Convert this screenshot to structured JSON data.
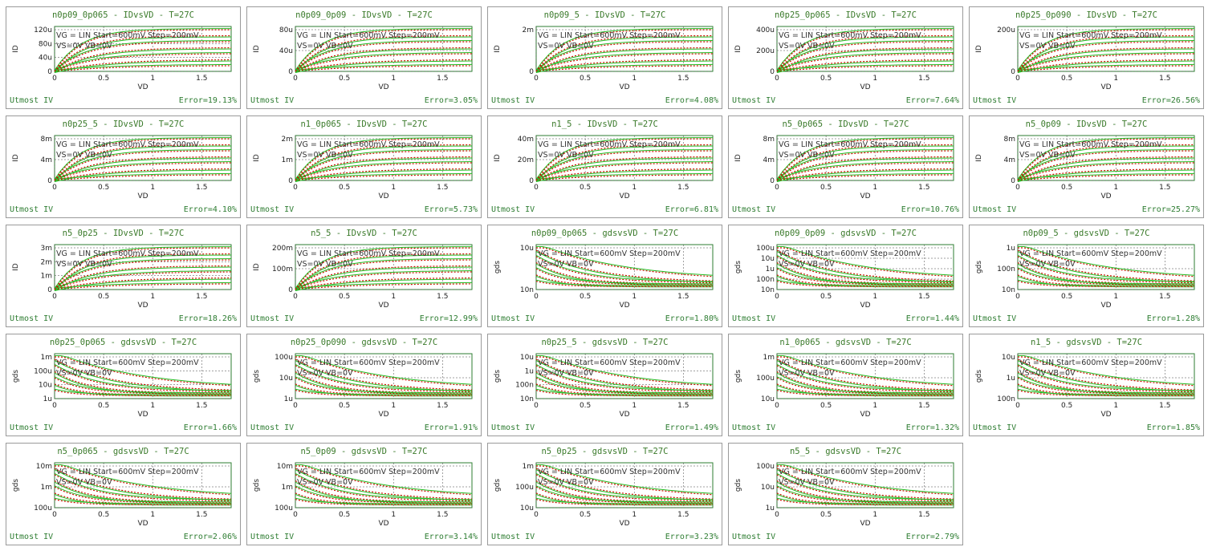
{
  "footer_label": "Utmost IV",
  "annotations": {
    "vg": "VG = LIN Start=600mV Step=200mV",
    "vs": "VS=0V VB=0V"
  },
  "colors": {
    "measured": "#22bb22",
    "simulated": "#cc1100",
    "axis": "#2e7d32",
    "text": "#3a7a2a"
  },
  "chart_data": [
    {
      "type": "line",
      "title": "n0p09_0p065 - IDvsVD - T=27C",
      "xlabel": "VD",
      "ylabel": "ID",
      "xlim": [
        0,
        1.8
      ],
      "xticks": [
        "0",
        "0.5",
        "1",
        "1.5"
      ],
      "yticks": [
        "0",
        "40u",
        "80u",
        "120u"
      ],
      "scale": "linear",
      "error": "Error=19.13%"
    },
    {
      "type": "line",
      "title": "n0p09_0p09 - IDvsVD - T=27C",
      "xlabel": "VD",
      "ylabel": "ID",
      "xlim": [
        0,
        1.8
      ],
      "xticks": [
        "0",
        "0.5",
        "1",
        "1.5"
      ],
      "yticks": [
        "0",
        "40u",
        "80u"
      ],
      "scale": "linear",
      "error": "Error=3.05%"
    },
    {
      "type": "line",
      "title": "n0p09_5 - IDvsVD - T=27C",
      "xlabel": "VD",
      "ylabel": "ID",
      "xlim": [
        0,
        1.8
      ],
      "xticks": [
        "0",
        "0.5",
        "1",
        "1.5"
      ],
      "yticks": [
        "0",
        "2m"
      ],
      "scale": "linear",
      "error": "Error=4.08%"
    },
    {
      "type": "line",
      "title": "n0p25_0p065 - IDvsVD - T=27C",
      "xlabel": "VD",
      "ylabel": "ID",
      "xlim": [
        0,
        1.8
      ],
      "xticks": [
        "0",
        "0.5",
        "1",
        "1.5"
      ],
      "yticks": [
        "0",
        "200u",
        "400u"
      ],
      "scale": "linear",
      "error": "Error=7.64%"
    },
    {
      "type": "line",
      "title": "n0p25_0p090 - IDvsVD - T=27C",
      "xlabel": "VD",
      "ylabel": "ID",
      "xlim": [
        0,
        1.8
      ],
      "xticks": [
        "0",
        "0.5",
        "1",
        "1.5"
      ],
      "yticks": [
        "0",
        "200u"
      ],
      "scale": "linear",
      "error": "Error=26.56%"
    },
    {
      "type": "line",
      "title": "n0p25_5 - IDvsVD - T=27C",
      "xlabel": "VD",
      "ylabel": "ID",
      "xlim": [
        0,
        1.8
      ],
      "xticks": [
        "0",
        "0.5",
        "1",
        "1.5"
      ],
      "yticks": [
        "0",
        "4m",
        "8m"
      ],
      "scale": "linear",
      "error": "Error=4.10%"
    },
    {
      "type": "line",
      "title": "n1_0p065 - IDvsVD - T=27C",
      "xlabel": "VD",
      "ylabel": "ID",
      "xlim": [
        0,
        1.8
      ],
      "xticks": [
        "0",
        "0.5",
        "1",
        "1.5"
      ],
      "yticks": [
        "0",
        "1m",
        "2m"
      ],
      "scale": "linear",
      "error": "Error=5.73%"
    },
    {
      "type": "line",
      "title": "n1_5 - IDvsVD - T=27C",
      "xlabel": "VD",
      "ylabel": "ID",
      "xlim": [
        0,
        1.8
      ],
      "xticks": [
        "0",
        "0.5",
        "1",
        "1.5"
      ],
      "yticks": [
        "0",
        "20m",
        "40m"
      ],
      "scale": "linear",
      "error": "Error=6.81%"
    },
    {
      "type": "line",
      "title": "n5_0p065 - IDvsVD - T=27C",
      "xlabel": "VD",
      "ylabel": "ID",
      "xlim": [
        0,
        1.8
      ],
      "xticks": [
        "0",
        "0.5",
        "1",
        "1.5"
      ],
      "yticks": [
        "0",
        "4m",
        "8m"
      ],
      "scale": "linear",
      "error": "Error=10.76%"
    },
    {
      "type": "line",
      "title": "n5_0p09 - IDvsVD - T=27C",
      "xlabel": "VD",
      "ylabel": "ID",
      "xlim": [
        0,
        1.8
      ],
      "xticks": [
        "0",
        "0.5",
        "1",
        "1.5"
      ],
      "yticks": [
        "0",
        "4m",
        "8m"
      ],
      "scale": "linear",
      "error": "Error=25.27%"
    },
    {
      "type": "line",
      "title": "n5_0p25 - IDvsVD - T=27C",
      "xlabel": "VD",
      "ylabel": "ID",
      "xlim": [
        0,
        1.8
      ],
      "xticks": [
        "0",
        "0.5",
        "1",
        "1.5"
      ],
      "yticks": [
        "0",
        "1m",
        "2m",
        "3m"
      ],
      "scale": "linear",
      "error": "Error=18.26%"
    },
    {
      "type": "line",
      "title": "n5_5 - IDvsVD - T=27C",
      "xlabel": "VD",
      "ylabel": "ID",
      "xlim": [
        0,
        1.8
      ],
      "xticks": [
        "0",
        "0.5",
        "1",
        "1.5"
      ],
      "yticks": [
        "0",
        "100m",
        "200m"
      ],
      "scale": "linear",
      "error": "Error=12.99%"
    },
    {
      "type": "line",
      "title": "n0p09_0p065 - gdsvsVD - T=27C",
      "xlabel": "VD",
      "ylabel": "gds",
      "xlim": [
        0,
        1.8
      ],
      "xticks": [
        "0",
        "0.5",
        "1",
        "1.5"
      ],
      "yticks": [
        "10n",
        "10u"
      ],
      "scale": "log",
      "error": "Error=1.80%"
    },
    {
      "type": "line",
      "title": "n0p09_0p09 - gdsvsVD - T=27C",
      "xlabel": "VD",
      "ylabel": "gds",
      "xlim": [
        0,
        1.8
      ],
      "xticks": [
        "0",
        "0.5",
        "1",
        "1.5"
      ],
      "yticks": [
        "10n",
        "100n",
        "1u",
        "10u",
        "100u"
      ],
      "scale": "log",
      "error": "Error=1.44%"
    },
    {
      "type": "line",
      "title": "n0p09_5 - gdsvsVD - T=27C",
      "xlabel": "VD",
      "ylabel": "gds",
      "xlim": [
        0,
        1.8
      ],
      "xticks": [
        "0",
        "0.5",
        "1",
        "1.5"
      ],
      "yticks": [
        "10n",
        "100n",
        "1u"
      ],
      "scale": "log",
      "error": "Error=1.28%"
    },
    {
      "type": "line",
      "title": "n0p25_0p065 - gdsvsVD - T=27C",
      "xlabel": "VD",
      "ylabel": "gds",
      "xlim": [
        0,
        1.8
      ],
      "xticks": [
        "0",
        "0.5",
        "1",
        "1.5"
      ],
      "yticks": [
        "1u",
        "10u",
        "100u",
        "1m"
      ],
      "scale": "log",
      "error": "Error=1.66%"
    },
    {
      "type": "line",
      "title": "n0p25_0p090 - gdsvsVD - T=27C",
      "xlabel": "VD",
      "ylabel": "gds",
      "xlim": [
        0,
        1.8
      ],
      "xticks": [
        "0",
        "0.5",
        "1",
        "1.5"
      ],
      "yticks": [
        "1u",
        "10u",
        "100u"
      ],
      "scale": "log",
      "error": "Error=1.91%"
    },
    {
      "type": "line",
      "title": "n0p25_5 - gdsvsVD - T=27C",
      "xlabel": "VD",
      "ylabel": "gds",
      "xlim": [
        0,
        1.8
      ],
      "xticks": [
        "0",
        "0.5",
        "1",
        "1.5"
      ],
      "yticks": [
        "10n",
        "100n",
        "1u",
        "10u"
      ],
      "scale": "log",
      "error": "Error=1.49%"
    },
    {
      "type": "line",
      "title": "n1_0p065 - gdsvsVD - T=27C",
      "xlabel": "VD",
      "ylabel": "gds",
      "xlim": [
        0,
        1.8
      ],
      "xticks": [
        "0",
        "0.5",
        "1",
        "1.5"
      ],
      "yticks": [
        "10u",
        "100u",
        "1m"
      ],
      "scale": "log",
      "error": "Error=1.32%"
    },
    {
      "type": "line",
      "title": "n1_5 - gdsvsVD - T=27C",
      "xlabel": "VD",
      "ylabel": "gds",
      "xlim": [
        0,
        1.8
      ],
      "xticks": [
        "0",
        "0.5",
        "1",
        "1.5"
      ],
      "yticks": [
        "100n",
        "1u",
        "10u"
      ],
      "scale": "log",
      "error": "Error=1.85%"
    },
    {
      "type": "line",
      "title": "n5_0p065 - gdsvsVD - T=27C",
      "xlabel": "VD",
      "ylabel": "gds",
      "xlim": [
        0,
        1.8
      ],
      "xticks": [
        "0",
        "0.5",
        "1",
        "1.5"
      ],
      "yticks": [
        "100u",
        "1m",
        "10m"
      ],
      "scale": "log",
      "error": "Error=2.06%"
    },
    {
      "type": "line",
      "title": "n5_0p09 - gdsvsVD - T=27C",
      "xlabel": "VD",
      "ylabel": "gds",
      "xlim": [
        0,
        1.8
      ],
      "xticks": [
        "0",
        "0.5",
        "1",
        "1.5"
      ],
      "yticks": [
        "100u",
        "1m",
        "10m"
      ],
      "scale": "log",
      "error": "Error=3.14%"
    },
    {
      "type": "line",
      "title": "n5_0p25 - gdsvsVD - T=27C",
      "xlabel": "VD",
      "ylabel": "gds",
      "xlim": [
        0,
        1.8
      ],
      "xticks": [
        "0",
        "0.5",
        "1",
        "1.5"
      ],
      "yticks": [
        "10u",
        "100u",
        "1m"
      ],
      "scale": "log",
      "error": "Error=3.23%"
    },
    {
      "type": "line",
      "title": "n5_5 - gdsvsVD - T=27C",
      "xlabel": "VD",
      "ylabel": "gds",
      "xlim": [
        0,
        1.8
      ],
      "xticks": [
        "0",
        "0.5",
        "1",
        "1.5"
      ],
      "yticks": [
        "1u",
        "10u",
        "100u"
      ],
      "scale": "log",
      "error": "Error=2.79%"
    }
  ]
}
